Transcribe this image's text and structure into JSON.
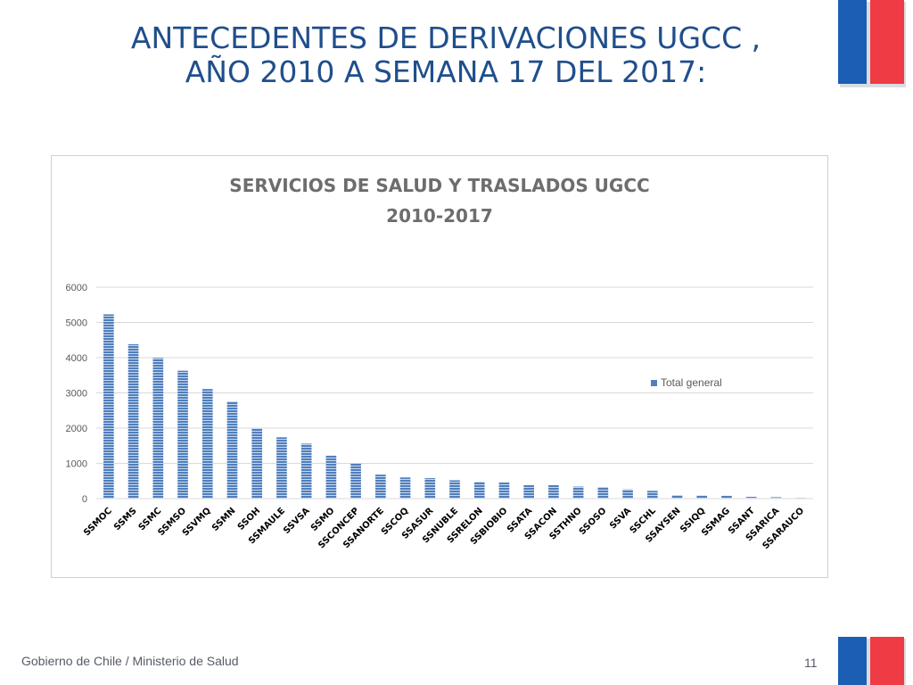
{
  "slide": {
    "title_line1": "ANTECEDENTES DE DERIVACIONES UGCC ,",
    "title_line2": "AÑO 2010 A SEMANA 17 DEL 2017:",
    "footer": "Gobierno de Chile / Ministerio de Salud",
    "page_number": "11"
  },
  "colors": {
    "title": "#1f4e8c",
    "bar": "#4f7fbd",
    "flag_blue": "#1a5fb4",
    "flag_red": "#ef3b43"
  },
  "chart_data": {
    "type": "bar",
    "title_line1": "SERVICIOS DE SALUD Y TRASLADOS UGCC",
    "title_line2": "2010-2017",
    "categories": [
      "SSMOC",
      "SSMS",
      "SSMC",
      "SSMSO",
      "SSVMQ",
      "SSMN",
      "SSOH",
      "SSMAULE",
      "SSVSA",
      "SSMO",
      "SSCONCEP",
      "SSANORTE",
      "SSCOQ",
      "SSASUR",
      "SSNUBLE",
      "SSRELON",
      "SSBIOBIO",
      "SSATA",
      "SSACON",
      "SSTHNO",
      "SSOSO",
      "SSVA",
      "SSCHL",
      "SSAYSEN",
      "SSIQQ",
      "SSMAG",
      "SSANT",
      "SSARICA",
      "SSARAUCO"
    ],
    "series": [
      {
        "name": "Total general",
        "values": [
          5230,
          4380,
          3990,
          3630,
          3110,
          2760,
          2000,
          1740,
          1560,
          1220,
          1000,
          680,
          600,
          580,
          520,
          480,
          460,
          380,
          380,
          340,
          330,
          260,
          220,
          100,
          90,
          80,
          50,
          40,
          10
        ]
      }
    ],
    "yticks": [
      "0",
      "1000",
      "2000",
      "3000",
      "4000",
      "5000",
      "6000"
    ],
    "ylim": [
      0,
      6000
    ],
    "grid": true,
    "legend_position": "right"
  }
}
